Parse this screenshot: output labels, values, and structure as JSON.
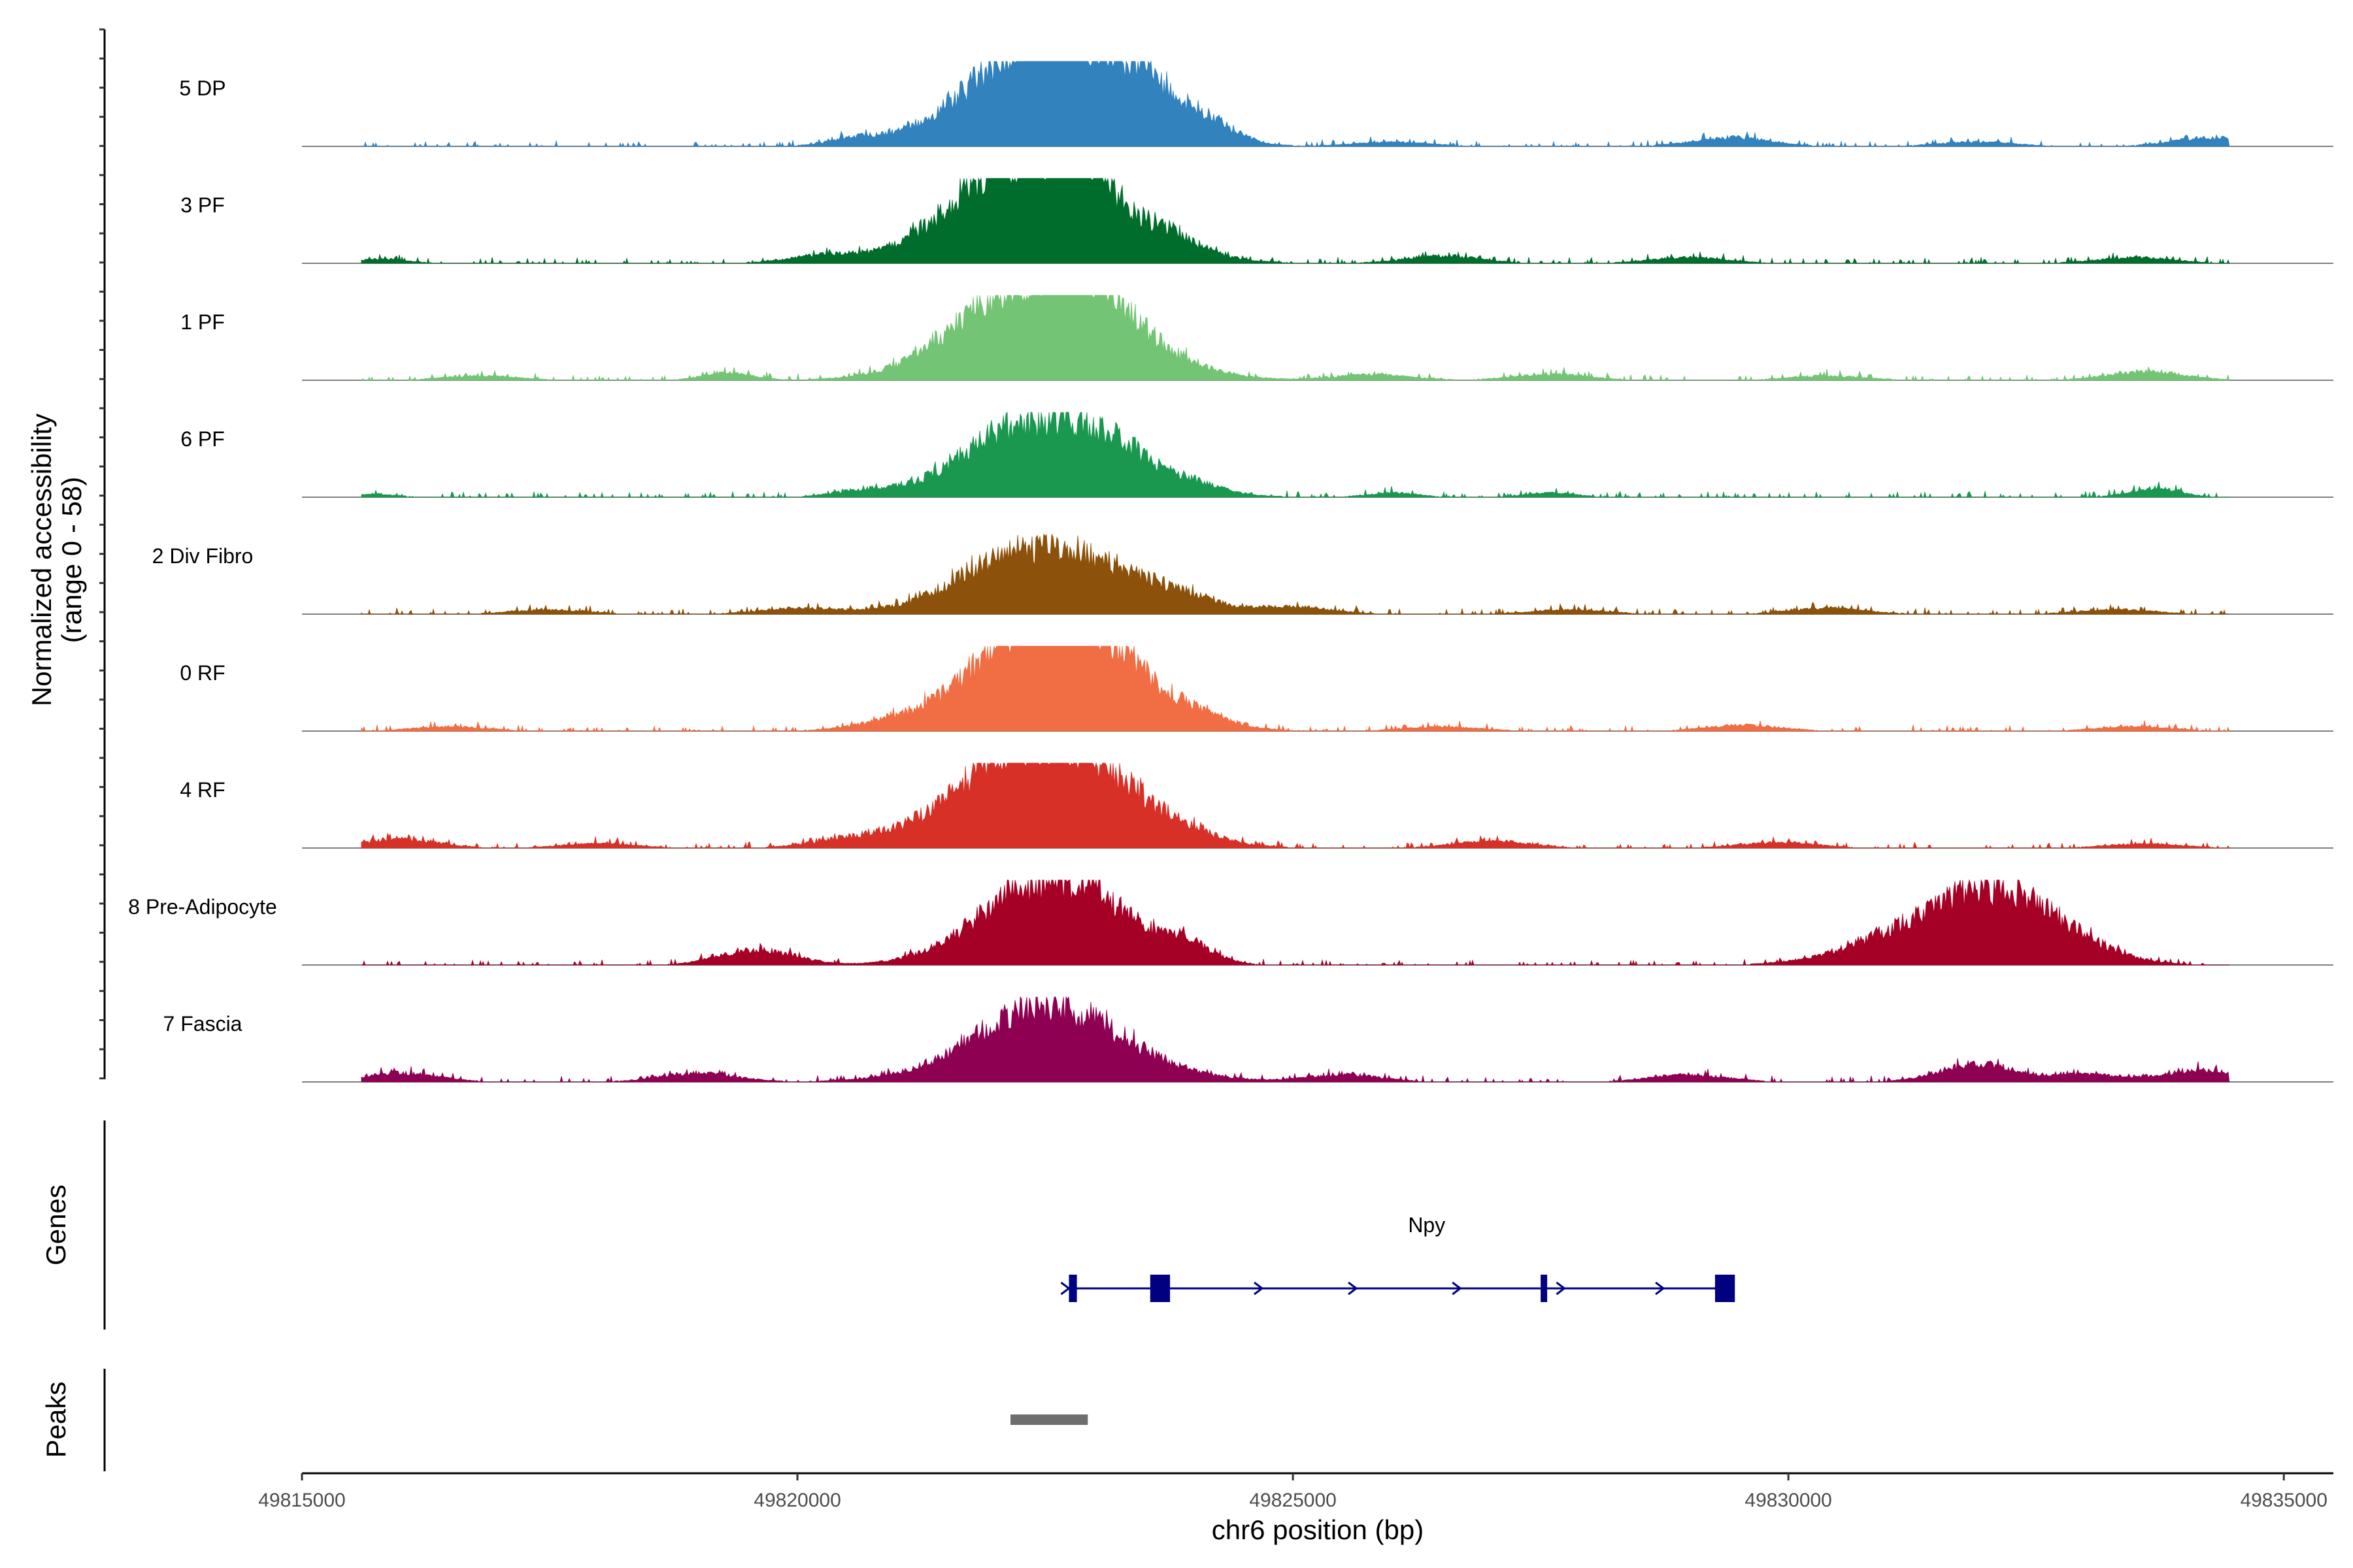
{
  "chart_data": {
    "type": "area",
    "title": "",
    "ylabel_line1": "Normalized accessibility",
    "ylabel_line2": "(range 0 - 58)",
    "ylim": [
      0,
      58
    ],
    "xlabel": "chr6 position (bp)",
    "xlim": [
      49815000,
      49835500
    ],
    "x_ticks": [
      49815000,
      49820000,
      49825000,
      49830000,
      49835000
    ],
    "x_tick_labels": [
      "49815000",
      "49820000",
      "49825000",
      "49830000",
      "49835000"
    ],
    "series": [
      {
        "name": "5 DP",
        "color": "#3182bd",
        "peaks": [
          [
            49822500,
            4,
            45
          ],
          [
            49822620,
            2,
            8
          ],
          [
            49822320,
            3,
            12
          ],
          [
            49822100,
            3,
            6
          ],
          [
            49823090,
            3,
            22
          ],
          [
            49823620,
            3,
            10
          ],
          [
            49823380,
            3,
            6
          ],
          [
            49824200,
            2,
            7
          ],
          [
            49821520,
            3,
            4
          ],
          [
            49829430,
            3,
            6
          ],
          [
            49834260,
            3,
            6
          ],
          [
            49820570,
            2,
            4
          ],
          [
            49826000,
            3,
            3
          ],
          [
            49831900,
            3,
            3
          ]
        ]
      },
      {
        "name": "3 PF",
        "color": "#006d2c",
        "peaks": [
          [
            49822530,
            4,
            55
          ],
          [
            49822170,
            3,
            18
          ],
          [
            49822870,
            2,
            12
          ],
          [
            49821800,
            3,
            6
          ],
          [
            49823800,
            2,
            6
          ],
          [
            49820300,
            3,
            5
          ],
          [
            49826500,
            3,
            5
          ],
          [
            49829000,
            3,
            4
          ],
          [
            49833500,
            3,
            4
          ],
          [
            49815800,
            2,
            3
          ]
        ]
      },
      {
        "name": "1 PF",
        "color": "#74c476",
        "peaks": [
          [
            49822560,
            4,
            58
          ],
          [
            49822200,
            3,
            16
          ],
          [
            49822920,
            2,
            12
          ],
          [
            49823300,
            3,
            5
          ],
          [
            49819300,
            2,
            5
          ],
          [
            49825800,
            3,
            4
          ],
          [
            49827600,
            3,
            4
          ],
          [
            49833600,
            3,
            6
          ],
          [
            49830400,
            3,
            3
          ],
          [
            49816800,
            3,
            3
          ]
        ]
      },
      {
        "name": "6 PF",
        "color": "#1a9850",
        "peaks": [
          [
            49822540,
            4,
            44
          ],
          [
            49822150,
            3,
            10
          ],
          [
            49822950,
            2,
            8
          ],
          [
            49823300,
            2,
            7
          ],
          [
            49824000,
            2,
            4
          ],
          [
            49820600,
            2,
            3
          ],
          [
            49826000,
            2,
            3
          ],
          [
            49827600,
            2,
            3
          ],
          [
            49833700,
            2,
            6
          ],
          [
            49815700,
            2,
            2
          ]
        ]
      },
      {
        "name": "2 Div Fibro",
        "color": "#8c510a",
        "peaks": [
          [
            49822520,
            4,
            36
          ],
          [
            49822000,
            3,
            10
          ],
          [
            49822900,
            3,
            8
          ],
          [
            49823800,
            3,
            8
          ],
          [
            49825000,
            3,
            5
          ],
          [
            49820000,
            3,
            4
          ],
          [
            49827800,
            3,
            3
          ],
          [
            49830400,
            3,
            4
          ],
          [
            49817500,
            3,
            3
          ],
          [
            49833300,
            3,
            3
          ]
        ]
      },
      {
        "name": "0 RF",
        "color": "#f16d43",
        "peaks": [
          [
            49822500,
            4,
            42
          ],
          [
            49822700,
            3,
            28
          ],
          [
            49822130,
            3,
            12
          ],
          [
            49823150,
            3,
            14
          ],
          [
            49824000,
            3,
            6
          ],
          [
            49829550,
            3,
            4
          ],
          [
            49821000,
            3,
            3
          ],
          [
            49826500,
            3,
            3
          ],
          [
            49816500,
            3,
            3
          ],
          [
            49833500,
            3,
            3
          ]
        ]
      },
      {
        "name": "4 RF",
        "color": "#d73027",
        "peaks": [
          [
            49822530,
            4,
            55
          ],
          [
            49822100,
            3,
            18
          ],
          [
            49822930,
            3,
            12
          ],
          [
            49823800,
            3,
            5
          ],
          [
            49816000,
            3,
            6
          ],
          [
            49820500,
            3,
            5
          ],
          [
            49827000,
            3,
            5
          ],
          [
            49829900,
            3,
            4
          ],
          [
            49833600,
            3,
            3
          ],
          [
            49818000,
            3,
            3
          ]
        ]
      },
      {
        "name": "8 Pre-Adipocyte",
        "color": "#a50026",
        "peaks": [
          [
            49822550,
            3,
            28
          ],
          [
            49822150,
            3,
            18
          ],
          [
            49822850,
            3,
            16
          ],
          [
            49819600,
            3,
            10
          ],
          [
            49831200,
            3,
            20
          ],
          [
            49832300,
            3,
            40
          ],
          [
            49831850,
            3,
            10
          ],
          [
            49823100,
            2,
            8
          ],
          [
            49823700,
            2,
            8
          ],
          [
            49824000,
            2,
            8
          ]
        ]
      },
      {
        "name": "7 Fascia",
        "color": "#8e0152",
        "peaks": [
          [
            49822550,
            4,
            40
          ],
          [
            49822200,
            3,
            10
          ],
          [
            49822900,
            3,
            8
          ],
          [
            49831900,
            3,
            12
          ],
          [
            49834200,
            3,
            8
          ],
          [
            49816000,
            3,
            6
          ],
          [
            49819000,
            3,
            6
          ],
          [
            49825500,
            3,
            5
          ],
          [
            49829000,
            3,
            5
          ],
          [
            49833000,
            3,
            5
          ]
        ]
      }
    ],
    "genes_label": "Genes",
    "gene": {
      "name": "Npy",
      "color": "#000080",
      "start": 49822780,
      "end": 49829420,
      "exons": [
        [
          49822740,
          49822820
        ],
        [
          49823560,
          49823760
        ],
        [
          49827500,
          49827560
        ],
        [
          49829260,
          49829460
        ]
      ],
      "arrows_at": [
        49822700,
        49824650,
        49825600,
        49826650,
        49827700,
        49828700
      ]
    },
    "peaks_label": "Peaks",
    "peak_regions": [
      [
        49822150,
        49822930
      ]
    ],
    "peak_color": "#6e6e6e"
  }
}
